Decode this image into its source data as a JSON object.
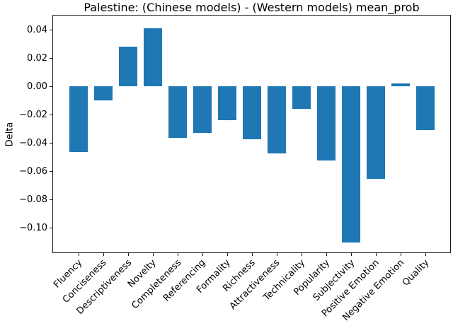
{
  "chart_data": {
    "type": "bar",
    "title": "Palestine: (Chinese models) - (Western models) mean_prob",
    "xlabel": "",
    "ylabel": "Delta",
    "categories": [
      "Fluency",
      "Conciseness",
      "Descriptiveness",
      "Novelty",
      "Completeness",
      "Referencing",
      "Formality",
      "Richness",
      "Attractiveness",
      "Technicality",
      "Popularity",
      "Subjectivity",
      "Positive Emotion",
      "Negative Emotion",
      "Quality"
    ],
    "values": [
      -0.046,
      -0.01,
      0.028,
      0.041,
      -0.036,
      -0.033,
      -0.024,
      -0.037,
      -0.047,
      -0.016,
      -0.052,
      -0.11,
      -0.065,
      0.002,
      -0.031
    ],
    "bar_color": "#1f77b4",
    "axis_color": "#1a1a1a",
    "ylim": [
      -0.117,
      0.05
    ],
    "yticks": [
      0.04,
      0.02,
      0,
      -0.02,
      -0.04,
      -0.06,
      -0.08,
      -0.1
    ],
    "ytick_labels": [
      "0.04",
      "0.02",
      "0.00",
      "−0.02",
      "−0.04",
      "−0.06",
      "−0.08",
      "−0.10"
    ],
    "x_tick_rotation": 45,
    "grid": false,
    "legend_position": "none"
  }
}
